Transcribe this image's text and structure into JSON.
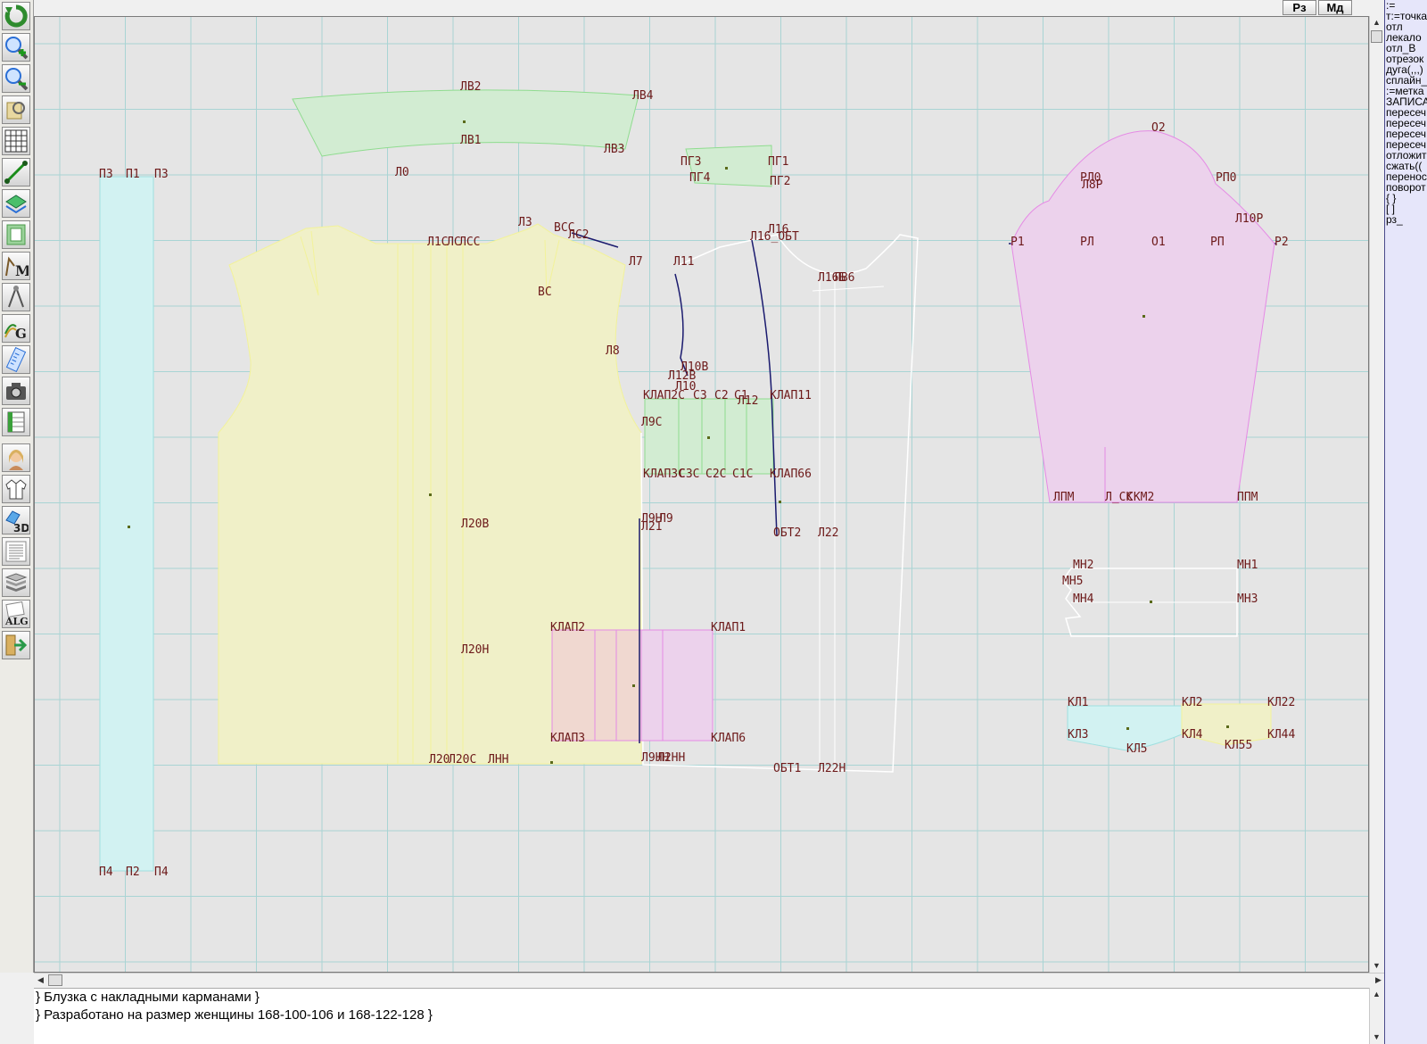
{
  "toolbar": {
    "tools": [
      {
        "name": "refresh-icon",
        "color": "#2e8b2e"
      },
      {
        "name": "zoom-in-icon",
        "color": "#2a6fd6"
      },
      {
        "name": "zoom-out-icon",
        "color": "#2a6fd6"
      },
      {
        "name": "pan-map-icon",
        "color": "#a08a40"
      },
      {
        "name": "grid-icon",
        "color": "#333333"
      },
      {
        "name": "line-tool-icon",
        "color": "#1a8c1a"
      },
      {
        "name": "layers-icon",
        "color": "#2a9a4a"
      },
      {
        "name": "pattern-sheet-icon",
        "color": "#4a9a4a"
      },
      {
        "name": "measurements-m-icon",
        "color": "#7a5a2a",
        "label": "M"
      },
      {
        "name": "compass-icon",
        "color": "#555555"
      },
      {
        "name": "grading-g-icon",
        "color": "#2a8a2a",
        "label": "G"
      },
      {
        "name": "ruler-icon",
        "color": "#2a6fd6"
      },
      {
        "name": "camera-icon",
        "color": "#444444"
      },
      {
        "name": "table-icon",
        "color": "#2a8a2a"
      },
      {
        "name": "woman-portrait-icon",
        "color": "#c88a5a"
      },
      {
        "name": "jacket-icon",
        "color": "#555555"
      },
      {
        "name": "3d-view-icon",
        "color": "#2a6fd6",
        "label": "3D"
      },
      {
        "name": "document-list-icon",
        "color": "#666666"
      },
      {
        "name": "books-icon",
        "color": "#666666"
      },
      {
        "name": "algorithm-icon",
        "color": "#444444",
        "label": "ALG"
      },
      {
        "name": "exit-arrow-icon",
        "color": "#2a9a4a"
      }
    ]
  },
  "tabs": {
    "rz": "Рз",
    "md": "Мд"
  },
  "command_panel": [
    ":=",
    "т:=точка",
    "отл",
    "лекало",
    "отл_В",
    "отрезок",
    "дуга(,,,)",
    "сплайн_",
    ":=метка",
    "ЗАПИСА",
    "пересеч",
    "пересеч",
    "пересеч",
    "пересеч",
    "отложит",
    "сжать((",
    "перенос",
    "поворот",
    "{ }",
    "[ ]",
    "рз_"
  ],
  "notes": [
    "} Блузка с накладными карманами }",
    "} Разработано на размер женщины 168-100-106 и 168-122-128  }"
  ],
  "colors": {
    "canvas": "#e5e5e5",
    "grid": "#a9d4d4",
    "label": "#6d1a1a",
    "cyan_fill": "#d2f2f2",
    "yellow_fill": "#f0f0c8",
    "green_fill": "#d2ecd2",
    "pink_fill": "#ecd2ec",
    "blue_line": "#1a1a6e"
  },
  "labels": {
    "yoke": [
      "ЛВ2",
      "ЛВ4",
      "ЛВ1",
      "ЛВ3"
    ],
    "strip": [
      "П3",
      "П1",
      "П3",
      "П4",
      "П2",
      "П4"
    ],
    "pg": [
      "ПГ3",
      "ПГ1",
      "ПГ4",
      "ПГ2"
    ],
    "front": [
      "Л0",
      "Л3",
      "ВСС",
      "ЛС2",
      "Л1С",
      "ЛС",
      "ЛСС",
      "Л7",
      "ВС",
      "Л8",
      "Л20В",
      "Л20Н",
      "Л20",
      "Л20С",
      "ЛНН",
      "Л9Н",
      "Л9С",
      "Л9",
      "Л21",
      "Л9НН",
      "Л12",
      "Л12В",
      "Л10",
      "Л10В",
      "Л11",
      "Л16",
      "Л16_ОБТ",
      "ЛВ6",
      "Л16Б",
      "ОБТ2",
      "Л22",
      "ОБТ1",
      "Л22Н",
      "Л2НН"
    ],
    "klap": [
      "КЛАП2С",
      "КЛАП3С",
      "КЛАП2",
      "КЛАП1",
      "КЛАП3",
      "КЛАП6",
      "КЛАП11",
      "КЛАП3С",
      "КЛАП66",
      "С3",
      "С2",
      "С1",
      "С3С",
      "С2С",
      "С1С",
      "КЛАП2",
      "КЛАП1",
      "КЛАП3",
      "КЛАП6"
    ],
    "sleeve": [
      "О2",
      "РЛ0",
      "РЛ",
      "РП0",
      "Л10Р",
      "Р1",
      "РЛ",
      "О1",
      "РП",
      "Р2",
      "ЛПМ",
      "Л_СК",
      "СКМ2",
      "ППМ",
      "Л8Р"
    ],
    "cuff": [
      "МН2",
      "МН1",
      "МН5",
      "МН4",
      "МН3"
    ],
    "pocket": [
      "КЛ1",
      "КЛ2",
      "КЛ22",
      "КЛ3",
      "КЛ4",
      "КЛ44",
      "КЛ5",
      "КЛ55"
    ]
  }
}
